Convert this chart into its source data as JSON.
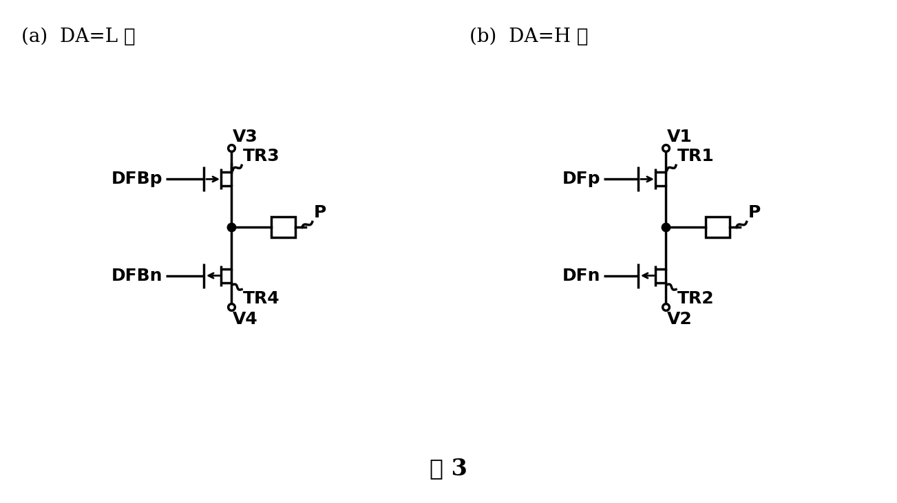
{
  "title_a": "(a)  DA=L 时",
  "title_b": "(b)  DA=H 时",
  "caption": "图 3",
  "bg_color": "#ffffff",
  "line_color": "#000000",
  "lw": 2.5,
  "font_size": 20,
  "label_font_size": 18
}
